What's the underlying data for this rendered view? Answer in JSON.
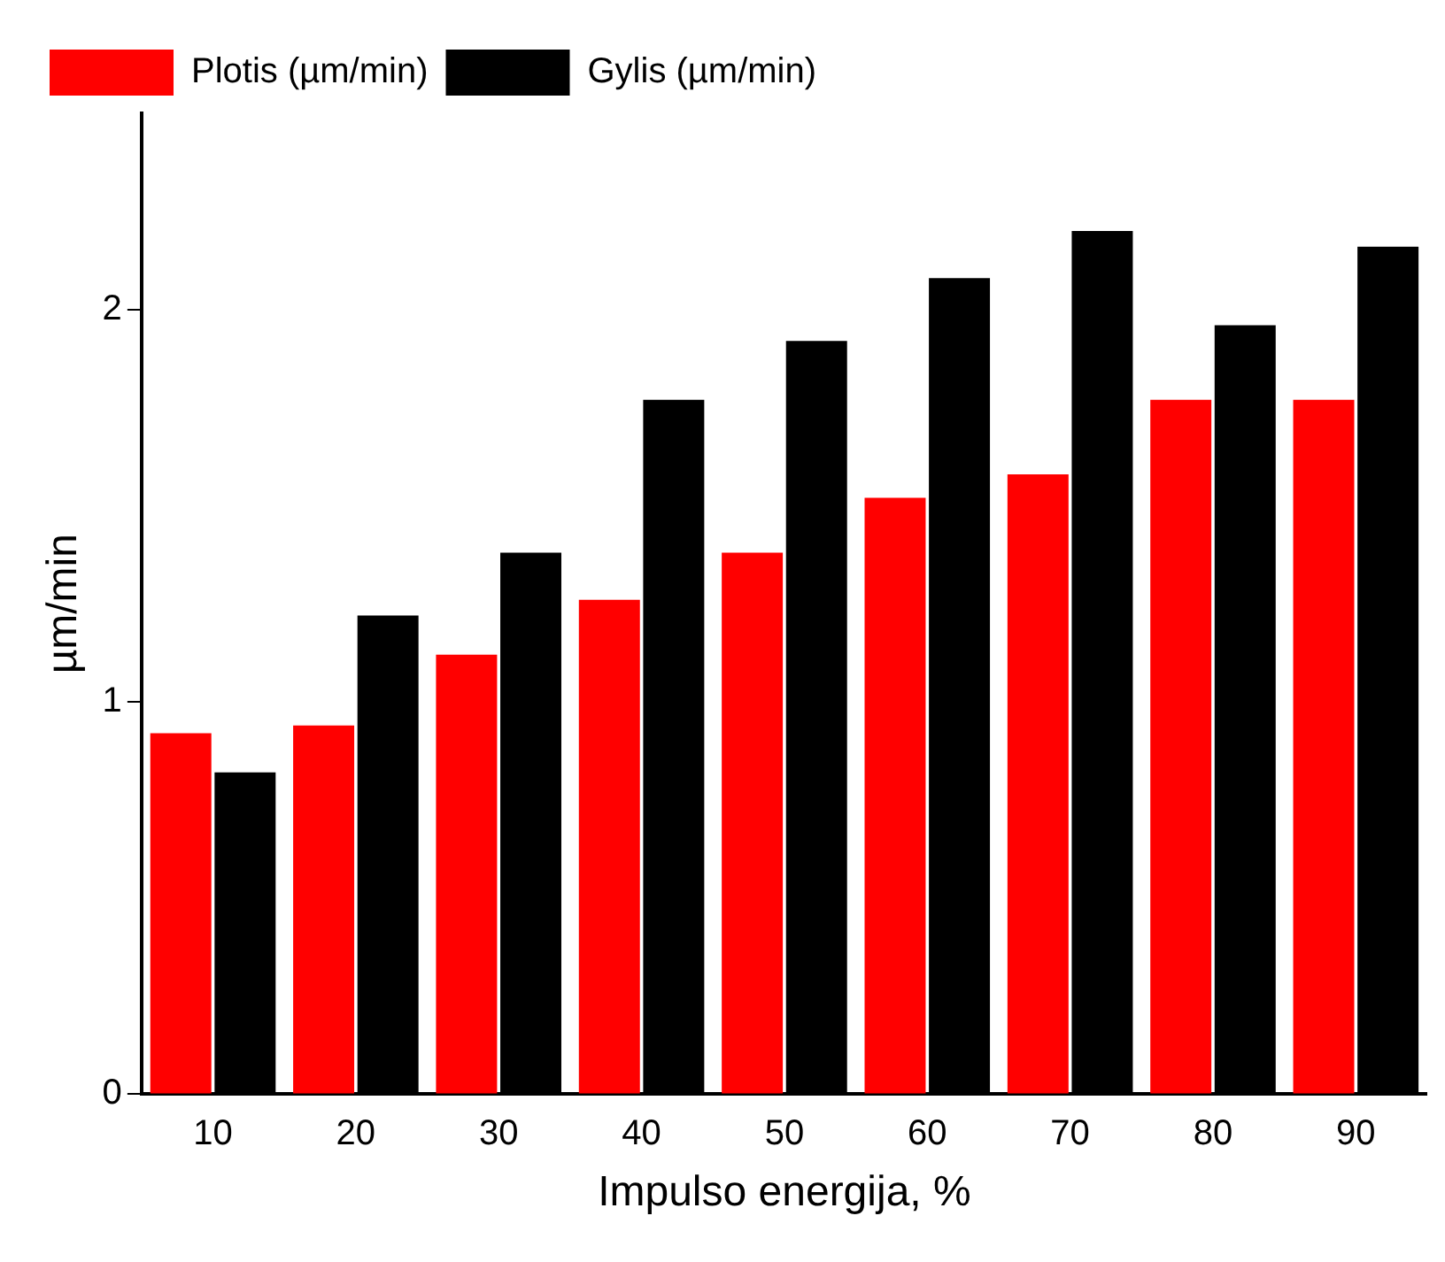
{
  "chart_data": {
    "type": "bar",
    "xlabel": "Impulso energija, %",
    "ylabel": "µm/min",
    "categories": [
      "10",
      "20",
      "30",
      "40",
      "50",
      "60",
      "70",
      "80",
      "90"
    ],
    "series": [
      {
        "name": "Plotis (µm/min)",
        "color": "#ff0000",
        "values": [
          0.92,
          0.94,
          1.12,
          1.26,
          1.38,
          1.52,
          1.58,
          1.77,
          1.77
        ]
      },
      {
        "name": "Gylis (µm/min)",
        "color": "#000000",
        "values": [
          0.82,
          1.22,
          1.38,
          1.77,
          1.92,
          2.08,
          2.2,
          1.96,
          2.16
        ]
      }
    ],
    "ylim": [
      0,
      2.5
    ],
    "yticks": [
      0,
      1,
      2
    ],
    "grid": false,
    "legend": "top left"
  }
}
